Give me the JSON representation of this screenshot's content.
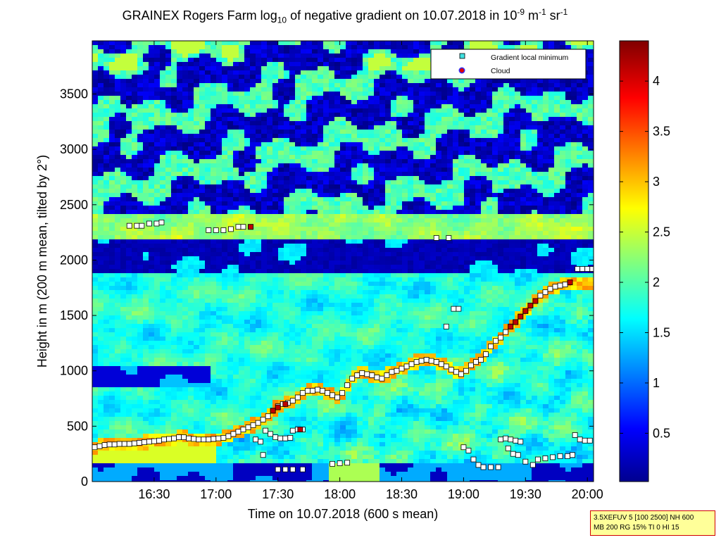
{
  "title": {
    "prefix": "GRAINEX Rogers Farm log",
    "sub": "10",
    "middle": " of negative gradient on 10.07.2018 in 10",
    "exp1": "-9",
    "unit1": " m",
    "exp2": "-1",
    "unit2": " sr",
    "exp3": "-1"
  },
  "legend": {
    "items": [
      "Gradient local minimum",
      "Cloud"
    ],
    "colors": {
      "gradient": "#40e0e0",
      "cloud": "#d00000"
    }
  },
  "info_box": {
    "line1": "3.5XEFUV 5 [100 2500] NH 600",
    "line2": "MB 200 RG 15% TI 0 HI 15"
  },
  "chart_data": {
    "type": "heatmap",
    "xlabel": "Time on 10.07.2018 (600 s mean)",
    "ylabel": "Height in m (200 m mean, tilted by 2°)",
    "x_ticks": [
      "16:30",
      "17:00",
      "17:30",
      "18:00",
      "18:30",
      "19:00",
      "19:30",
      "20:00"
    ],
    "x_tick_values_h": [
      16.5,
      17.0,
      17.5,
      18.0,
      18.5,
      19.0,
      19.5,
      20.0
    ],
    "xlim_h": [
      16.0,
      20.05
    ],
    "y_ticks": [
      0,
      500,
      1000,
      1500,
      2000,
      2500,
      3000,
      3500
    ],
    "ylim": [
      0,
      3980
    ],
    "colorbar": {
      "ticks": [
        "0.5",
        "1",
        "1.5",
        "2",
        "2.5",
        "3",
        "3.5",
        "4"
      ],
      "tick_values": [
        0.5,
        1,
        1.5,
        2,
        2.5,
        3,
        3.5,
        4
      ],
      "range": [
        0.02,
        4.4
      ],
      "colormap": "jet"
    },
    "layers": [
      {
        "feature": "surface layer top (high gradient)",
        "approx_height_m": [
          330,
          400
        ],
        "time_h": [
          16.0,
          17.1
        ]
      },
      {
        "feature": "upper dry layer (low gradient)",
        "approx_height_m": [
          1900,
          2200
        ],
        "time_h": [
          16.0,
          19.9
        ]
      },
      {
        "feature": "aerosol layer top at ~2300 m",
        "approx_height_m": [
          2250,
          2350
        ],
        "time_h": [
          16.0,
          19.9
        ]
      }
    ],
    "series": [
      {
        "name": "Gradient local minimum",
        "marker": "square",
        "points": [
          [
            16.02,
            310
          ],
          [
            16.06,
            320
          ],
          [
            16.1,
            330
          ],
          [
            16.14,
            335
          ],
          [
            16.18,
            335
          ],
          [
            16.22,
            340
          ],
          [
            16.26,
            340
          ],
          [
            16.3,
            340
          ],
          [
            16.34,
            345
          ],
          [
            16.38,
            350
          ],
          [
            16.42,
            355
          ],
          [
            16.46,
            360
          ],
          [
            16.5,
            365
          ],
          [
            16.54,
            370
          ],
          [
            16.58,
            380
          ],
          [
            16.62,
            385
          ],
          [
            16.66,
            390
          ],
          [
            16.7,
            400
          ],
          [
            16.74,
            400
          ],
          [
            16.78,
            390
          ],
          [
            16.82,
            385
          ],
          [
            16.86,
            380
          ],
          [
            16.9,
            380
          ],
          [
            16.94,
            380
          ],
          [
            16.98,
            385
          ],
          [
            17.02,
            390
          ],
          [
            17.06,
            395
          ],
          [
            17.1,
            410
          ],
          [
            17.14,
            430
          ],
          [
            17.18,
            450
          ],
          [
            17.22,
            470
          ],
          [
            17.26,
            490
          ],
          [
            17.3,
            510
          ],
          [
            17.34,
            530
          ],
          [
            17.38,
            560
          ],
          [
            17.42,
            590
          ],
          [
            17.46,
            640
          ],
          [
            17.5,
            680
          ],
          [
            17.54,
            700
          ],
          [
            17.58,
            710
          ],
          [
            17.62,
            730
          ],
          [
            17.66,
            760
          ],
          [
            17.7,
            800
          ],
          [
            17.74,
            820
          ],
          [
            17.78,
            820
          ],
          [
            17.82,
            830
          ],
          [
            17.86,
            820
          ],
          [
            17.9,
            800
          ],
          [
            17.94,
            780
          ],
          [
            17.98,
            760
          ],
          [
            18.02,
            800
          ],
          [
            18.06,
            870
          ],
          [
            18.1,
            930
          ],
          [
            18.14,
            960
          ],
          [
            18.18,
            980
          ],
          [
            18.22,
            970
          ],
          [
            18.26,
            960
          ],
          [
            18.3,
            940
          ],
          [
            18.34,
            930
          ],
          [
            18.38,
            960
          ],
          [
            18.42,
            990
          ],
          [
            18.46,
            1000
          ],
          [
            18.5,
            1020
          ],
          [
            18.54,
            1040
          ],
          [
            18.58,
            1060
          ],
          [
            18.62,
            1080
          ],
          [
            18.66,
            1090
          ],
          [
            18.7,
            1100
          ],
          [
            18.74,
            1090
          ],
          [
            18.78,
            1080
          ],
          [
            18.82,
            1060
          ],
          [
            18.86,
            1040
          ],
          [
            18.9,
            1010
          ],
          [
            18.94,
            990
          ],
          [
            18.98,
            970
          ],
          [
            19.02,
            1000
          ],
          [
            19.06,
            1050
          ],
          [
            19.1,
            1080
          ],
          [
            19.14,
            1100
          ],
          [
            19.18,
            1150
          ],
          [
            19.22,
            1220
          ],
          [
            19.26,
            1270
          ],
          [
            19.3,
            1300
          ],
          [
            19.34,
            1350
          ],
          [
            19.38,
            1400
          ],
          [
            19.42,
            1440
          ],
          [
            19.46,
            1490
          ],
          [
            19.5,
            1540
          ],
          [
            19.54,
            1590
          ],
          [
            19.58,
            1630
          ],
          [
            19.62,
            1680
          ],
          [
            19.66,
            1710
          ],
          [
            19.7,
            1740
          ],
          [
            19.74,
            1760
          ],
          [
            19.78,
            1770
          ],
          [
            19.82,
            1780
          ],
          [
            19.86,
            1800
          ],
          [
            19.92,
            1920
          ],
          [
            19.96,
            1920
          ],
          [
            20.0,
            1920
          ],
          [
            20.04,
            1920
          ],
          [
            16.3,
            2310
          ],
          [
            16.36,
            2310
          ],
          [
            16.4,
            2310
          ],
          [
            16.46,
            2330
          ],
          [
            16.52,
            2330
          ],
          [
            16.56,
            2340
          ],
          [
            16.94,
            2270
          ],
          [
            17.0,
            2270
          ],
          [
            17.06,
            2270
          ],
          [
            17.12,
            2280
          ],
          [
            17.18,
            2300
          ],
          [
            17.22,
            2300
          ],
          [
            17.28,
            2300
          ],
          [
            17.32,
            380
          ],
          [
            17.36,
            360
          ],
          [
            17.4,
            460
          ],
          [
            17.44,
            430
          ],
          [
            17.48,
            400
          ],
          [
            17.52,
            390
          ],
          [
            17.56,
            390
          ],
          [
            17.6,
            395
          ],
          [
            17.62,
            460
          ],
          [
            17.66,
            470
          ],
          [
            17.7,
            470
          ],
          [
            17.5,
            110
          ],
          [
            17.56,
            110
          ],
          [
            17.62,
            110
          ],
          [
            17.7,
            110
          ],
          [
            17.94,
            160
          ],
          [
            18.0,
            165
          ],
          [
            18.06,
            170
          ],
          [
            17.38,
            240
          ],
          [
            18.86,
            1400
          ],
          [
            18.92,
            1560
          ],
          [
            18.96,
            1560
          ],
          [
            18.78,
            2200
          ],
          [
            18.88,
            2200
          ],
          [
            19.0,
            310
          ],
          [
            19.04,
            280
          ],
          [
            19.08,
            200
          ],
          [
            19.12,
            150
          ],
          [
            19.16,
            130
          ],
          [
            19.22,
            130
          ],
          [
            19.28,
            130
          ],
          [
            19.3,
            380
          ],
          [
            19.34,
            390
          ],
          [
            19.38,
            380
          ],
          [
            19.42,
            370
          ],
          [
            19.46,
            360
          ],
          [
            19.36,
            300
          ],
          [
            19.4,
            250
          ],
          [
            19.44,
            240
          ],
          [
            19.5,
            180
          ],
          [
            19.56,
            150
          ],
          [
            19.6,
            200
          ],
          [
            19.66,
            210
          ],
          [
            19.72,
            220
          ],
          [
            19.78,
            230
          ],
          [
            19.84,
            230
          ],
          [
            19.88,
            240
          ],
          [
            19.9,
            420
          ],
          [
            19.94,
            380
          ],
          [
            19.98,
            370
          ],
          [
            20.02,
            370
          ]
        ]
      },
      {
        "name": "Cloud",
        "marker": "square-red",
        "points": [
          [
            17.28,
            2300
          ],
          [
            17.46,
            640
          ],
          [
            17.5,
            670
          ],
          [
            17.56,
            700
          ],
          [
            17.68,
            470
          ],
          [
            19.38,
            1400
          ],
          [
            19.42,
            1440
          ],
          [
            19.46,
            1490
          ],
          [
            19.5,
            1540
          ],
          [
            19.54,
            1590
          ],
          [
            19.58,
            1630
          ],
          [
            19.86,
            1800
          ]
        ]
      }
    ]
  }
}
